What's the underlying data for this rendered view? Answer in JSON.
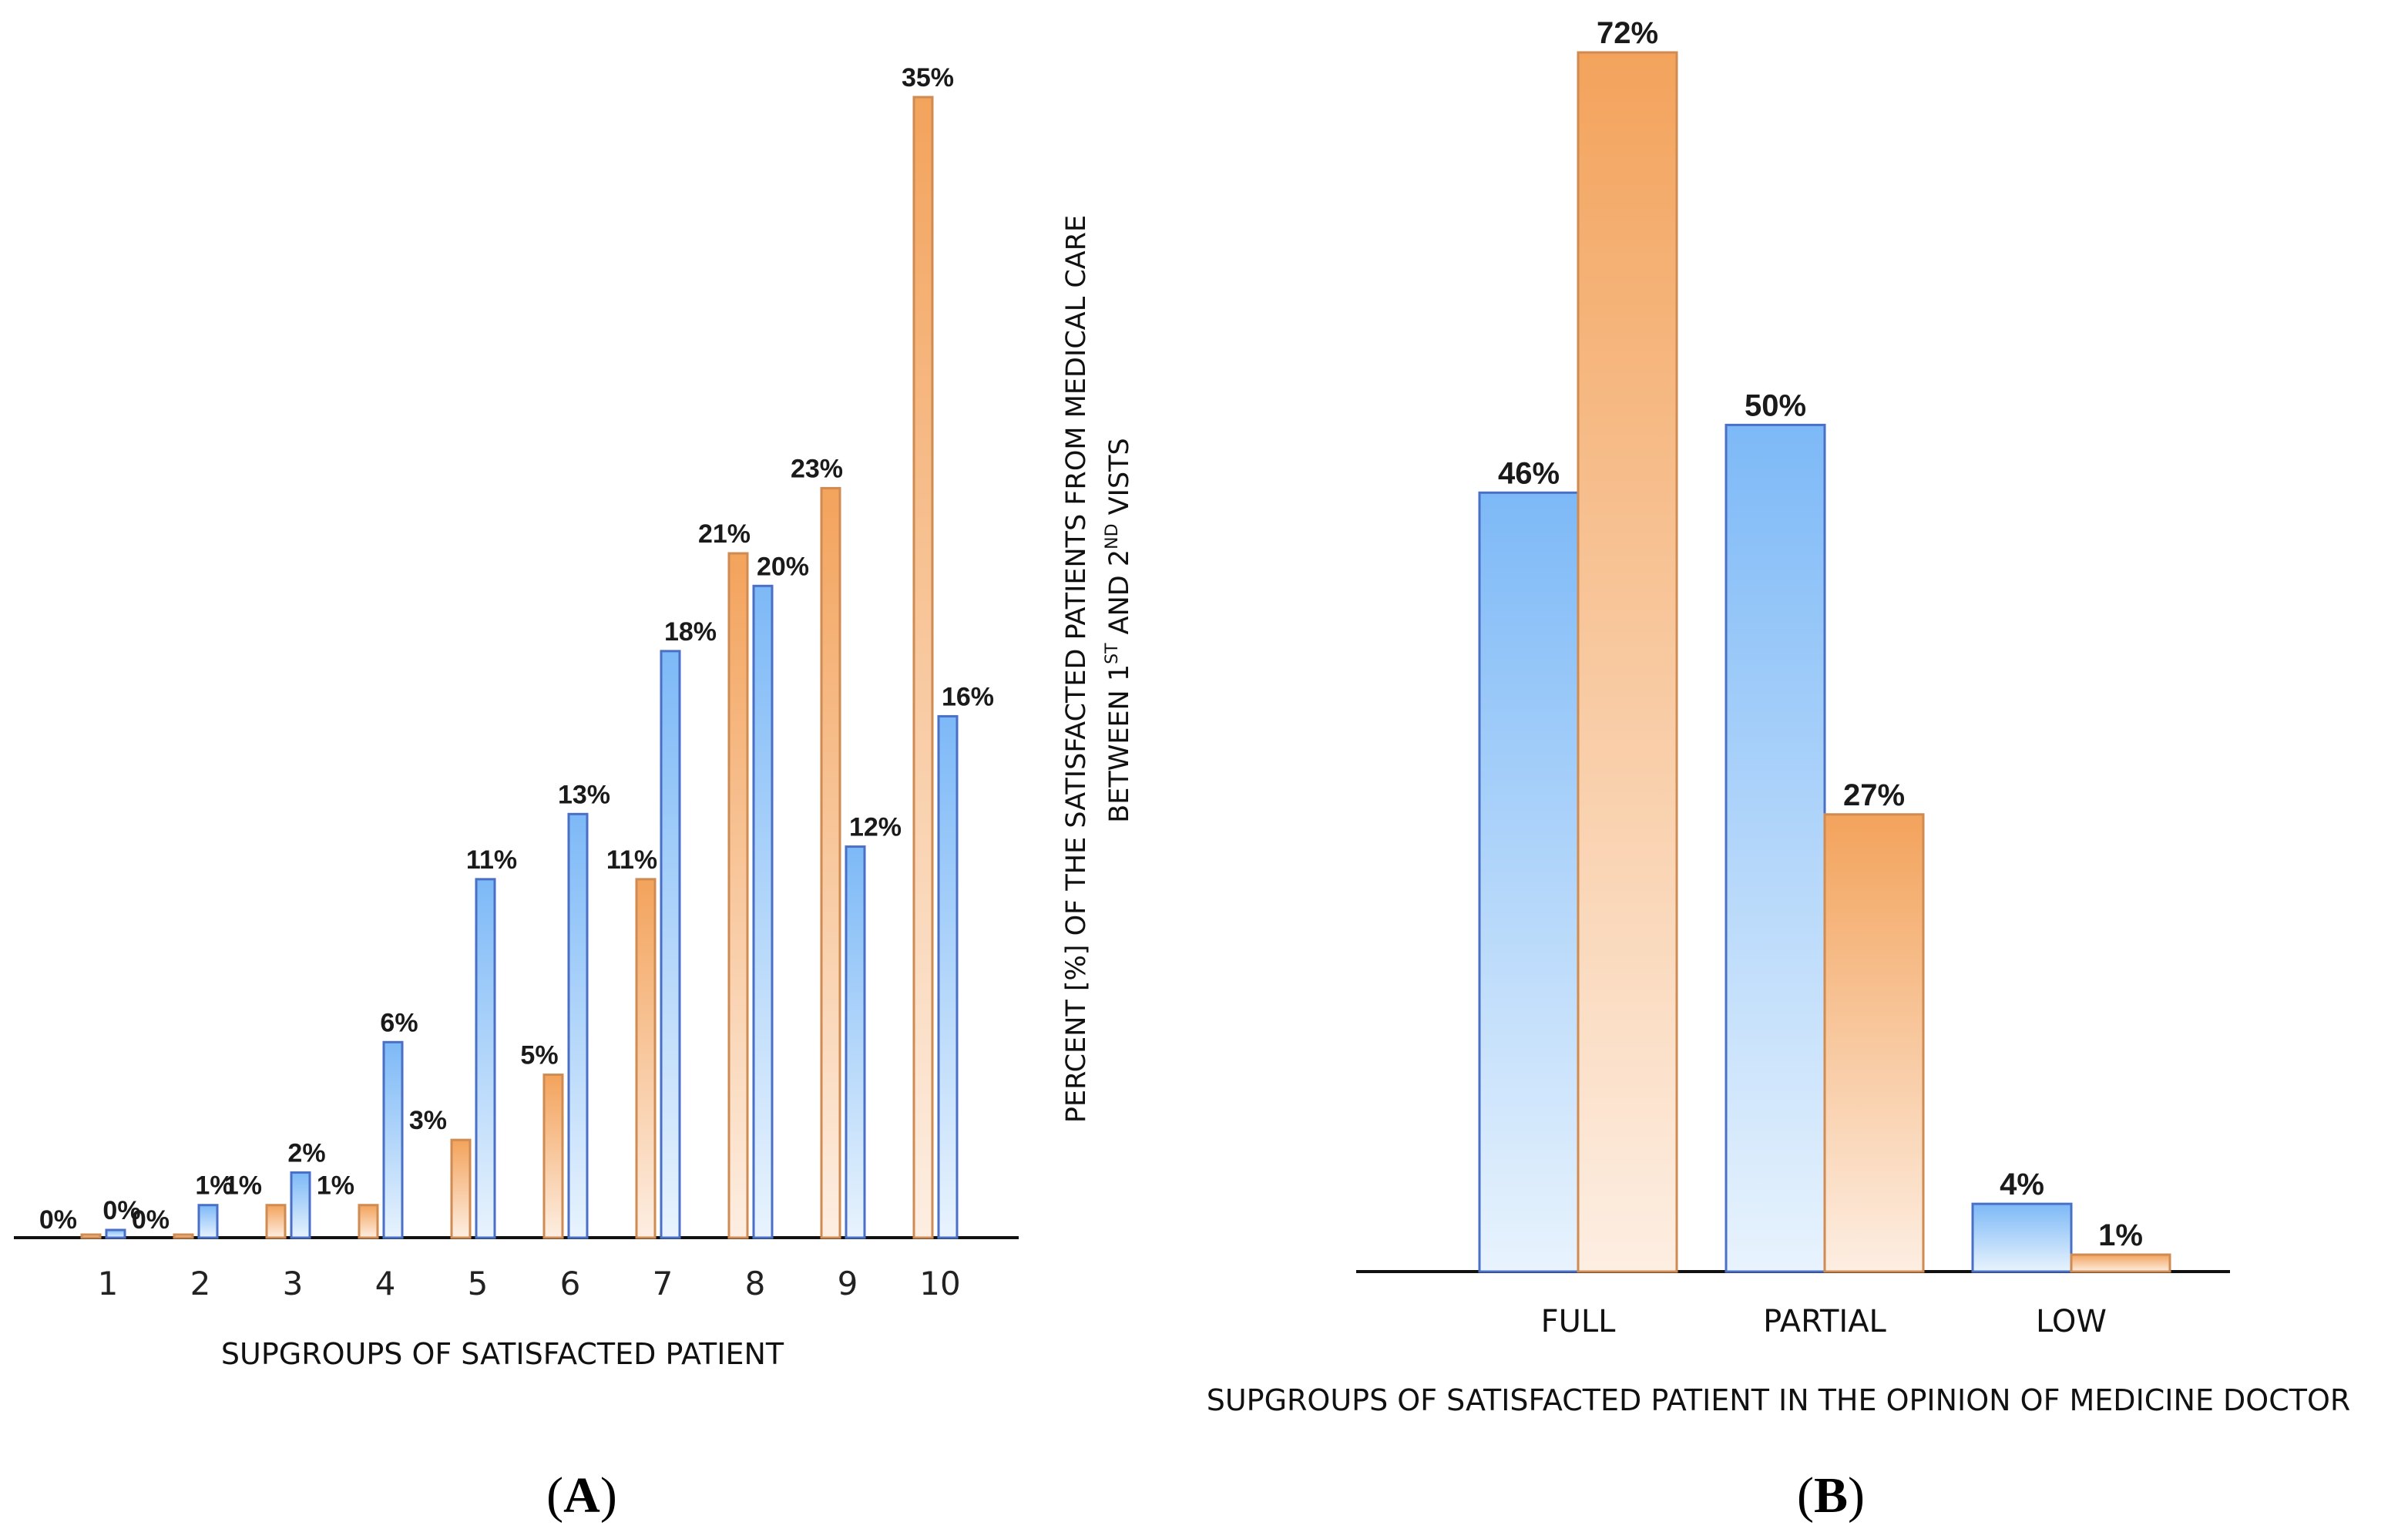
{
  "colors": {
    "blue_top": "#7db9f7",
    "blue_bottom": "#e8f3fd",
    "blue_stroke": "#4a6fc6",
    "orange_top": "#f3a35c",
    "orange_bottom": "#fdeee2",
    "orange_stroke": "#cf8b52",
    "axis": "#111111"
  },
  "chart_data": [
    {
      "type": "bar",
      "panel": "A",
      "categories": [
        "1",
        "2",
        "3",
        "4",
        "5",
        "6",
        "7",
        "8",
        "9",
        "10"
      ],
      "series": [
        {
          "name": "orange",
          "values": [
            0,
            0,
            1,
            1,
            3,
            5,
            11,
            21,
            23,
            35
          ]
        },
        {
          "name": "blue",
          "values": [
            0,
            1,
            2,
            6,
            11,
            13,
            18,
            20,
            12,
            16
          ]
        }
      ],
      "value_labels": {
        "orange": [
          "0%",
          "0%",
          "1%",
          "1%",
          "3%",
          "5%",
          "11%",
          "21%",
          "23%",
          "35%"
        ],
        "blue": [
          "0%",
          "1%",
          "2%",
          "6%",
          "11%",
          "13%",
          "18%",
          "20%",
          "12%",
          "16%"
        ]
      },
      "xlabel": "SUPGROUPS OF SATISFACTED PATIENT",
      "ylabel_line1": "PERCENT [%] OF THE SATISFACTED PATIENTS FROM MEDICAL CARE",
      "ylabel_line2_a": "BETWEEN 1",
      "ylabel_line2_sup1": "ST",
      "ylabel_line2_b": " AND 2",
      "ylabel_line2_sup2": "ND",
      "ylabel_line2_c": " VISTS",
      "ylim": [
        0,
        35
      ],
      "grid": false,
      "panel_label": "A"
    },
    {
      "type": "bar",
      "panel": "B",
      "categories": [
        "FULL",
        "PARTIAL",
        "LOW"
      ],
      "series": [
        {
          "name": "blue",
          "values": [
            46,
            50,
            4
          ]
        },
        {
          "name": "orange",
          "values": [
            72,
            27,
            1
          ]
        }
      ],
      "value_labels": {
        "blue": [
          "46%",
          "50%",
          "4%"
        ],
        "orange": [
          "72%",
          "27%",
          "1%"
        ]
      },
      "xlabel": "SUPGROUPS OF SATISFACTED PATIENT IN THE OPINION OF MEDICINE DOCTOR",
      "ylim": [
        0,
        72
      ],
      "grid": false,
      "panel_label": "B"
    }
  ]
}
